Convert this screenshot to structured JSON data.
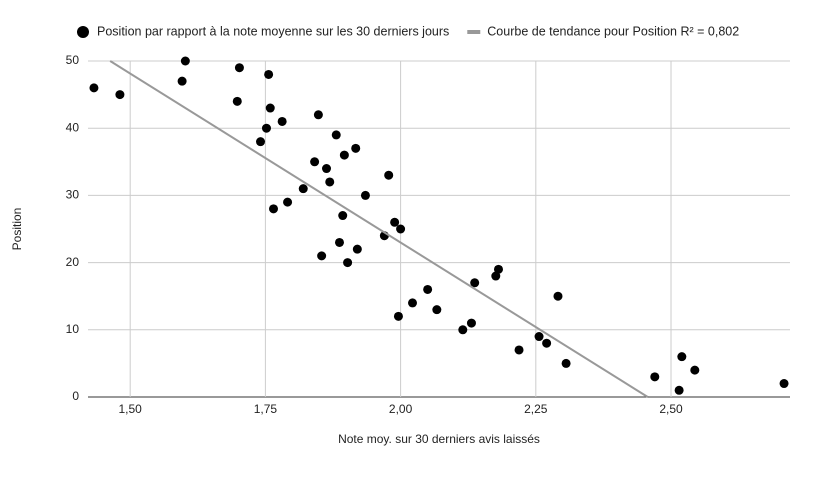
{
  "chart_data": {
    "type": "scatter",
    "xlabel": "Note moy. sur 30 derniers avis laissés",
    "ylabel": "Position",
    "xlim": [
      1.422,
      2.72
    ],
    "ylim": [
      0,
      50
    ],
    "xticks": [
      {
        "value": 1.5,
        "label": "1,50"
      },
      {
        "value": 1.75,
        "label": "1,75"
      },
      {
        "value": 2.0,
        "label": "2,00"
      },
      {
        "value": 2.25,
        "label": "2,25"
      },
      {
        "value": 2.5,
        "label": "2,50"
      }
    ],
    "yticks": [
      0,
      10,
      20,
      30,
      40,
      50
    ],
    "grid": true,
    "legend": "top",
    "series": [
      {
        "name": "Position par rapport à la note moyenne sur les 30 derniers jours",
        "color": "#000000",
        "type": "scatter",
        "x": [
          1.433,
          1.481,
          1.602,
          1.596,
          1.702,
          1.756,
          1.698,
          1.759,
          1.752,
          1.781,
          1.741,
          1.848,
          1.881,
          1.917,
          1.896,
          1.841,
          1.863,
          1.869,
          1.978,
          1.82,
          1.935,
          1.791,
          1.765,
          1.893,
          1.989,
          2.0,
          1.97,
          1.887,
          1.92,
          1.854,
          1.902,
          2.181,
          2.176,
          2.137,
          2.05,
          2.291,
          2.022,
          2.067,
          1.996,
          2.131,
          2.115,
          2.256,
          2.27,
          2.219,
          2.52,
          2.306,
          2.544,
          2.47,
          2.709,
          2.515
        ],
        "values": [
          46,
          45,
          50,
          47,
          49,
          48,
          44,
          43,
          40,
          41,
          38,
          42,
          39,
          37,
          36,
          35,
          34,
          32,
          33,
          31,
          30,
          29,
          28,
          27,
          26,
          25,
          24,
          23,
          22,
          21,
          20,
          19,
          18,
          17,
          16,
          15,
          14,
          13,
          12,
          11,
          10,
          9,
          8,
          7,
          6,
          5,
          4,
          3,
          2,
          1
        ]
      },
      {
        "name": "Courbe de tendance pour Position R² = 0,802",
        "color": "#999999",
        "type": "line",
        "x": [
          1.463,
          2.457
        ],
        "values": [
          50,
          0
        ]
      }
    ]
  }
}
